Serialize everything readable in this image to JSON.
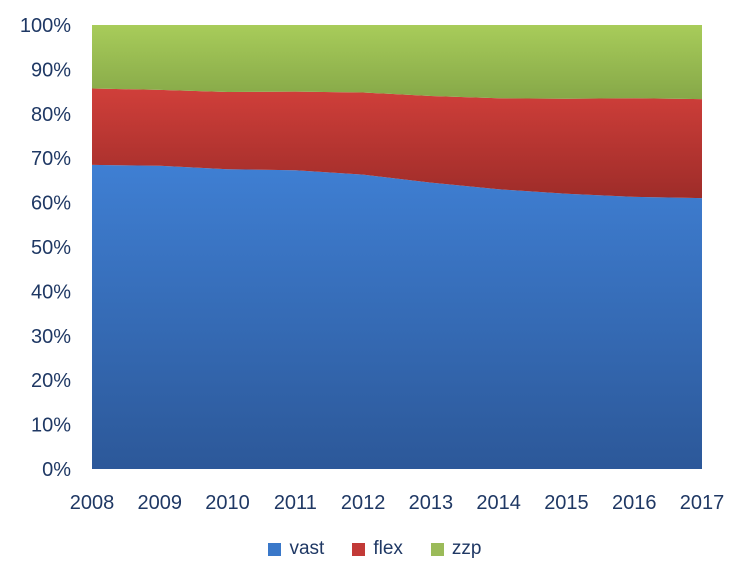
{
  "chart_data": {
    "type": "area",
    "stacked": "percent",
    "title": "",
    "xlabel": "",
    "ylabel": "",
    "x": [
      "2008",
      "2009",
      "2010",
      "2011",
      "2012",
      "2013",
      "2014",
      "2015",
      "2016",
      "2017"
    ],
    "y_ticks": [
      "0%",
      "10%",
      "20%",
      "30%",
      "40%",
      "50%",
      "60%",
      "70%",
      "80%",
      "90%",
      "100%"
    ],
    "ylim": [
      0,
      100
    ],
    "grid": false,
    "legend_position": "bottom",
    "series": [
      {
        "name": "vast",
        "color": "#3a78c9",
        "values": [
          68.5,
          68.3,
          67.5,
          67.3,
          66.3,
          64.5,
          63.0,
          62.0,
          61.3,
          61.0
        ]
      },
      {
        "name": "flex",
        "color": "#c23a37",
        "values": [
          17.2,
          17.1,
          17.4,
          17.7,
          18.5,
          19.5,
          20.5,
          21.4,
          22.2,
          22.3
        ]
      },
      {
        "name": "zzp",
        "color": "#9bbb59",
        "values": [
          14.3,
          14.6,
          15.1,
          15.0,
          15.2,
          16.0,
          16.5,
          16.6,
          16.5,
          16.7
        ]
      }
    ]
  }
}
